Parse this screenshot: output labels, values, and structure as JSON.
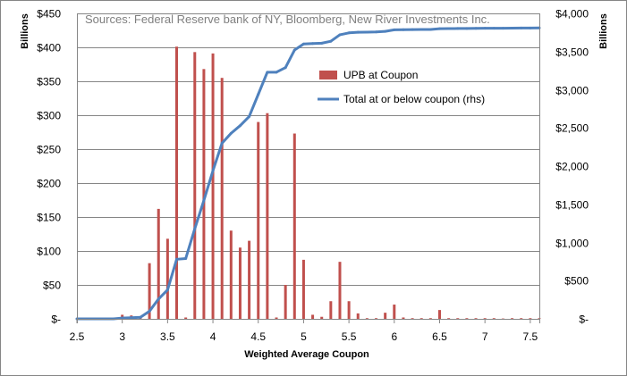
{
  "chart_data": {
    "type": "bar+line",
    "source_note": "Sources:  Federal Reserve bank of NY,  Bloomberg, New River Investments Inc.",
    "xlabel": "Weighted Average Coupon",
    "ylabel_left": "Billions",
    "ylabel_right": "Billions",
    "x_range": [
      2.5,
      7.6
    ],
    "x_ticks": [
      "2.5",
      "3",
      "3.5",
      "4",
      "4.5",
      "5",
      "5.5",
      "6",
      "6.5",
      "7",
      "7.5"
    ],
    "x_tick_values": [
      2.5,
      3,
      3.5,
      4,
      4.5,
      5,
      5.5,
      6,
      6.5,
      7,
      7.5
    ],
    "ylim_left": [
      0,
      450
    ],
    "ylim_right": [
      0,
      4000
    ],
    "y_left_ticks": [
      "$-",
      "$50",
      "$100",
      "$150",
      "$200",
      "$250",
      "$300",
      "$350",
      "$400",
      "$450"
    ],
    "y_left_tick_values": [
      0,
      50,
      100,
      150,
      200,
      250,
      300,
      350,
      400,
      450
    ],
    "y_right_ticks": [
      "$-",
      "$500",
      "$1,000",
      "$1,500",
      "$2,000",
      "$2,500",
      "$3,000",
      "$3,500",
      "$4,000"
    ],
    "y_right_tick_values": [
      0,
      500,
      1000,
      1500,
      2000,
      2500,
      3000,
      3500,
      4000
    ],
    "legend": [
      "UPB at Coupon",
      "Total at or below coupon (rhs)"
    ],
    "colors": {
      "bars": "#c0504d",
      "line": "#4f81bd",
      "grid": "#868686"
    },
    "bars": {
      "name": "UPB at Coupon",
      "x": [
        2.5,
        2.6,
        2.7,
        2.8,
        2.9,
        3.0,
        3.1,
        3.2,
        3.3,
        3.4,
        3.5,
        3.6,
        3.7,
        3.8,
        3.9,
        4.0,
        4.1,
        4.2,
        4.3,
        4.4,
        4.5,
        4.6,
        4.7,
        4.8,
        4.9,
        5.0,
        5.1,
        5.2,
        5.3,
        5.4,
        5.5,
        5.6,
        5.7,
        5.8,
        5.9,
        6.0,
        6.1,
        6.2,
        6.3,
        6.4,
        6.5,
        6.6,
        6.7,
        6.8,
        6.9,
        7.0,
        7.1,
        7.2,
        7.3,
        7.4,
        7.5,
        7.6
      ],
      "values": [
        0.5,
        0.5,
        0.5,
        0.5,
        0.5,
        6,
        5,
        3,
        82,
        162,
        118,
        401,
        2,
        393,
        368,
        391,
        355,
        130,
        105,
        115,
        290,
        303,
        2,
        50,
        273,
        87,
        6,
        3,
        26,
        84,
        26,
        8,
        1,
        1,
        9,
        21,
        2,
        1,
        1,
        1,
        13,
        1,
        1,
        1,
        1,
        1,
        1,
        0.5,
        1,
        1,
        1,
        1
      ]
    },
    "line": {
      "name": "Total at or below coupon (rhs)",
      "x": [
        2.5,
        2.6,
        2.7,
        2.8,
        2.9,
        3.0,
        3.1,
        3.2,
        3.3,
        3.4,
        3.5,
        3.6,
        3.7,
        3.8,
        3.9,
        4.0,
        4.1,
        4.2,
        4.3,
        4.4,
        4.5,
        4.6,
        4.7,
        4.8,
        4.9,
        5.0,
        5.1,
        5.2,
        5.3,
        5.4,
        5.5,
        5.6,
        5.7,
        5.8,
        5.9,
        6.0,
        6.1,
        6.2,
        6.3,
        6.4,
        6.5,
        6.6,
        6.7,
        6.8,
        6.9,
        7.0,
        7.1,
        7.2,
        7.3,
        7.4,
        7.5,
        7.6
      ],
      "values": [
        0,
        0,
        0,
        0,
        0,
        10,
        15,
        20,
        100,
        260,
        380,
        780,
        790,
        1180,
        1550,
        1940,
        2300,
        2430,
        2530,
        2650,
        2940,
        3230,
        3230,
        3290,
        3520,
        3600,
        3605,
        3610,
        3635,
        3720,
        3745,
        3753,
        3755,
        3757,
        3765,
        3785,
        3787,
        3788,
        3789,
        3790,
        3800,
        3801,
        3802,
        3803,
        3804,
        3805,
        3806,
        3806,
        3807,
        3808,
        3809,
        3810
      ]
    }
  }
}
